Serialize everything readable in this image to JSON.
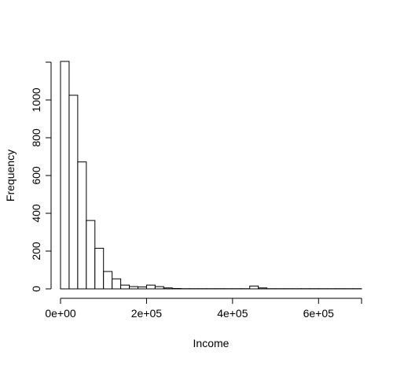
{
  "chart_data": {
    "type": "bar",
    "title": "",
    "xlabel": "Income",
    "ylabel": "Frequency",
    "bin_width": 20000,
    "x_start": 0,
    "xlim": [
      0,
      700000
    ],
    "ylim": [
      0,
      1200
    ],
    "x_ticks": [
      0,
      200000,
      400000,
      600000
    ],
    "x_tick_labels": [
      "0e+00",
      "2e+05",
      "4e+05",
      "6e+05"
    ],
    "y_ticks": [
      0,
      200,
      400,
      600,
      800,
      1000
    ],
    "y_tick_labels": [
      "0",
      "200",
      "400",
      "600",
      "800",
      "1000"
    ],
    "grid": false,
    "legend": "none",
    "values": [
      1210,
      1025,
      672,
      362,
      215,
      92,
      53,
      20,
      12,
      10,
      20,
      12,
      5,
      2,
      1,
      1,
      1,
      1,
      1,
      1,
      1,
      1,
      15,
      5,
      1,
      1,
      1,
      1,
      1,
      1,
      1,
      1,
      1,
      1,
      1
    ],
    "bar_fill": "#ffffff",
    "bar_stroke": "#000000"
  }
}
